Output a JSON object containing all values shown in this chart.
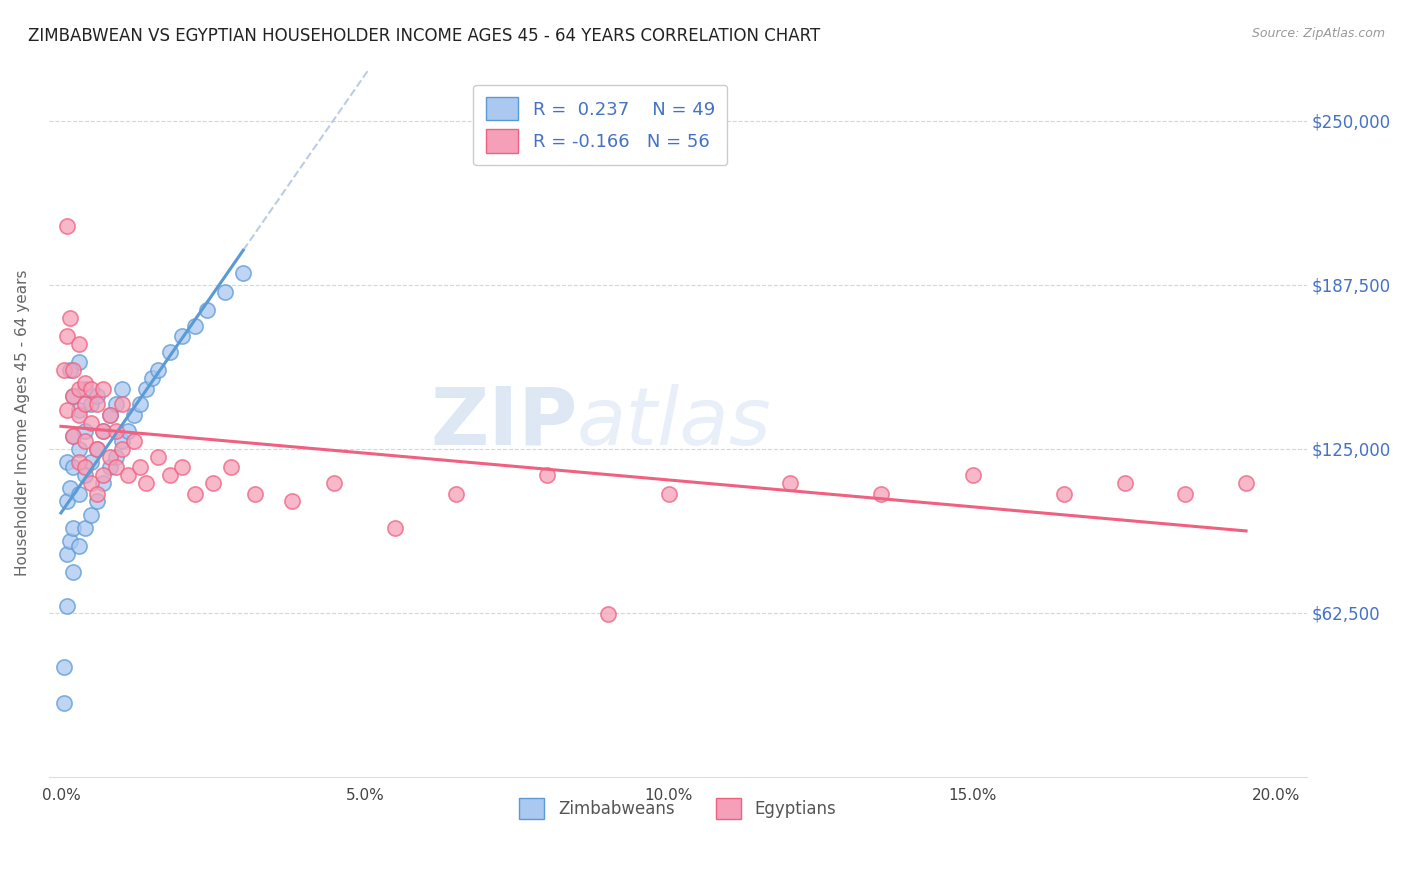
{
  "title": "ZIMBABWEAN VS EGYPTIAN HOUSEHOLDER INCOME AGES 45 - 64 YEARS CORRELATION CHART",
  "source": "Source: ZipAtlas.com",
  "ylabel": "Householder Income Ages 45 - 64 years",
  "xlabel_ticks": [
    "0.0%",
    "5.0%",
    "10.0%",
    "15.0%",
    "20.0%"
  ],
  "xlabel_vals": [
    0.0,
    0.05,
    0.1,
    0.15,
    0.2
  ],
  "ytick_labels": [
    "$62,500",
    "$125,000",
    "$187,500",
    "$250,000"
  ],
  "ytick_vals": [
    62500,
    125000,
    187500,
    250000
  ],
  "ylim": [
    0,
    270000
  ],
  "xlim": [
    -0.002,
    0.205
  ],
  "r_zimbabwean": 0.237,
  "n_zimbabwean": 49,
  "r_egyptian": -0.166,
  "n_egyptian": 56,
  "zim_color": "#aac8f0",
  "egy_color": "#f5a0b8",
  "zim_line_color": "#5b9bd5",
  "egy_line_color": "#f06080",
  "background_color": "#ffffff",
  "zimbabwean_x": [
    0.0005,
    0.0005,
    0.001,
    0.001,
    0.001,
    0.001,
    0.0015,
    0.0015,
    0.002,
    0.002,
    0.002,
    0.002,
    0.002,
    0.003,
    0.003,
    0.003,
    0.003,
    0.003,
    0.004,
    0.004,
    0.004,
    0.004,
    0.005,
    0.005,
    0.005,
    0.006,
    0.006,
    0.006,
    0.007,
    0.007,
    0.008,
    0.008,
    0.009,
    0.009,
    0.01,
    0.01,
    0.011,
    0.012,
    0.013,
    0.014,
    0.015,
    0.016,
    0.018,
    0.02,
    0.022,
    0.024,
    0.027,
    0.03,
    0.0015
  ],
  "zimbabwean_y": [
    28000,
    42000,
    85000,
    105000,
    120000,
    65000,
    90000,
    110000,
    78000,
    95000,
    118000,
    130000,
    145000,
    88000,
    108000,
    125000,
    140000,
    158000,
    95000,
    115000,
    132000,
    148000,
    100000,
    120000,
    142000,
    105000,
    125000,
    145000,
    112000,
    132000,
    118000,
    138000,
    122000,
    142000,
    128000,
    148000,
    132000,
    138000,
    142000,
    148000,
    152000,
    155000,
    162000,
    168000,
    172000,
    178000,
    185000,
    192000,
    155000
  ],
  "egyptian_x": [
    0.0005,
    0.001,
    0.001,
    0.001,
    0.0015,
    0.002,
    0.002,
    0.002,
    0.003,
    0.003,
    0.003,
    0.003,
    0.004,
    0.004,
    0.004,
    0.004,
    0.005,
    0.005,
    0.005,
    0.006,
    0.006,
    0.006,
    0.007,
    0.007,
    0.007,
    0.008,
    0.008,
    0.009,
    0.009,
    0.01,
    0.01,
    0.011,
    0.012,
    0.013,
    0.014,
    0.016,
    0.018,
    0.02,
    0.022,
    0.025,
    0.028,
    0.032,
    0.038,
    0.045,
    0.055,
    0.065,
    0.08,
    0.09,
    0.1,
    0.12,
    0.135,
    0.15,
    0.165,
    0.175,
    0.185,
    0.195
  ],
  "egyptian_y": [
    155000,
    140000,
    168000,
    210000,
    175000,
    130000,
    155000,
    145000,
    120000,
    148000,
    165000,
    138000,
    128000,
    150000,
    118000,
    142000,
    135000,
    112000,
    148000,
    125000,
    142000,
    108000,
    132000,
    115000,
    148000,
    122000,
    138000,
    118000,
    132000,
    125000,
    142000,
    115000,
    128000,
    118000,
    112000,
    122000,
    115000,
    118000,
    108000,
    112000,
    118000,
    108000,
    105000,
    112000,
    95000,
    108000,
    115000,
    62000,
    108000,
    112000,
    108000,
    115000,
    108000,
    112000,
    108000,
    112000
  ]
}
